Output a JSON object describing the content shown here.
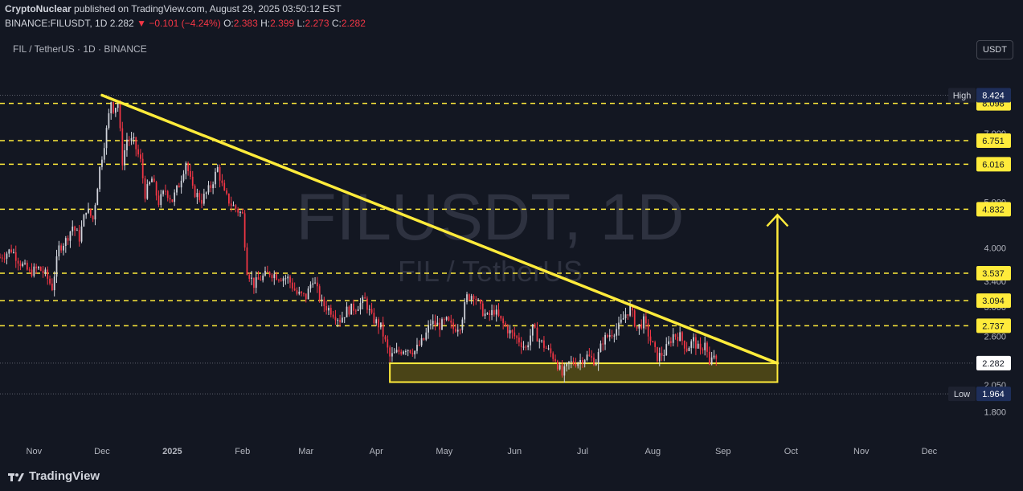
{
  "header": {
    "publisher": "CryptoNuclear",
    "published_text": "published on TradingView.com, August 29, 2025 03:50:12 EST",
    "ticker": "BINANCE:FILUSDT, 1D",
    "last": "2.282",
    "change": "−0.101 (−4.24%)",
    "o_label": "O:",
    "o": "2.383",
    "h_label": "H:",
    "h": "2.399",
    "l_label": "L:",
    "l": "2.273",
    "c_label": "C:",
    "c": "2.282"
  },
  "symbol_label": "FIL / TetherUS · 1D · BINANCE",
  "currency_button": "USDT",
  "watermark": {
    "line1": "FILUSDT, 1D",
    "line2": "FIL / TetherUS"
  },
  "footer": {
    "logo_text": "TradingView"
  },
  "colors": {
    "background": "#131722",
    "up": "#d1d4dc",
    "down": "#f23645",
    "accent": "#ffeb3b",
    "zone": "#4a4417"
  },
  "chart_data": {
    "type": "candlestick",
    "symbol": "FILUSDT",
    "interval": "1D",
    "scale": "log",
    "ylim": [
      1.72,
      9.2
    ],
    "x_range": [
      "2024-10-17",
      "2025-12-20"
    ],
    "x_tick_labels": [
      {
        "date": "2024-11-01",
        "label": "Nov"
      },
      {
        "date": "2024-12-01",
        "label": "Dec"
      },
      {
        "date": "2025-01-01",
        "label": "2025"
      },
      {
        "date": "2025-02-01",
        "label": "Feb"
      },
      {
        "date": "2025-03-01",
        "label": "Mar"
      },
      {
        "date": "2025-04-01",
        "label": "Apr"
      },
      {
        "date": "2025-05-01",
        "label": "May"
      },
      {
        "date": "2025-06-01",
        "label": "Jun"
      },
      {
        "date": "2025-07-01",
        "label": "Jul"
      },
      {
        "date": "2025-08-01",
        "label": "Aug"
      },
      {
        "date": "2025-09-01",
        "label": "Sep"
      },
      {
        "date": "2025-10-01",
        "label": "Oct"
      },
      {
        "date": "2025-11-01",
        "label": "Nov"
      },
      {
        "date": "2025-12-01",
        "label": "Dec"
      }
    ],
    "y_tick_labels": [
      "7.000",
      "5.000",
      "4.000",
      "3.400",
      "3.000",
      "2.600",
      "2.050",
      "1.800"
    ],
    "levels": [
      {
        "value": 8.098,
        "label": "8.098"
      },
      {
        "value": 6.751,
        "label": "6.751"
      },
      {
        "value": 6.016,
        "label": "6.016"
      },
      {
        "value": 4.832,
        "label": "4.832"
      },
      {
        "value": 3.537,
        "label": "3.537"
      },
      {
        "value": 3.094,
        "label": "3.094"
      },
      {
        "value": 2.737,
        "label": "2.737"
      }
    ],
    "high": {
      "label": "High",
      "value": "8.424"
    },
    "low": {
      "label": "Low",
      "value": "1.964"
    },
    "current_price": {
      "value": 2.282,
      "label": "2.282"
    },
    "trendline": {
      "from": {
        "date": "2024-12-01",
        "price": 8.424
      },
      "to": {
        "date": "2025-09-25",
        "price": 2.28
      }
    },
    "support_zone": {
      "from": "2025-04-07",
      "to": "2025-09-25",
      "top": 2.28,
      "bottom": 2.08
    },
    "target_arrow": {
      "date": "2025-09-25",
      "from": 2.28,
      "to": 4.7
    },
    "price_path": [
      [
        "2024-10-17",
        3.82
      ],
      [
        "2024-10-22",
        3.97
      ],
      [
        "2024-10-26",
        3.72
      ],
      [
        "2024-10-30",
        3.55
      ],
      [
        "2024-11-03",
        3.62
      ],
      [
        "2024-11-06",
        3.52
      ],
      [
        "2024-11-09",
        3.3
      ],
      [
        "2024-11-12",
        4.0
      ],
      [
        "2024-11-15",
        4.15
      ],
      [
        "2024-11-18",
        4.45
      ],
      [
        "2024-11-21",
        4.2
      ],
      [
        "2024-11-24",
        4.85
      ],
      [
        "2024-11-27",
        4.6
      ],
      [
        "2024-11-30",
        5.9
      ],
      [
        "2024-12-03",
        7.1
      ],
      [
        "2024-12-05",
        8.2
      ],
      [
        "2024-12-06",
        7.9
      ],
      [
        "2024-12-08",
        8.1
      ],
      [
        "2024-12-10",
        6.1
      ],
      [
        "2024-12-12",
        6.8
      ],
      [
        "2024-12-15",
        6.7
      ],
      [
        "2024-12-18",
        6.1
      ],
      [
        "2024-12-20",
        5.2
      ],
      [
        "2024-12-23",
        5.6
      ],
      [
        "2024-12-26",
        5.0
      ],
      [
        "2024-12-29",
        5.3
      ],
      [
        "2025-01-01",
        5.05
      ],
      [
        "2025-01-04",
        5.45
      ],
      [
        "2025-01-07",
        6.1
      ],
      [
        "2025-01-10",
        5.3
      ],
      [
        "2025-01-14",
        5.05
      ],
      [
        "2025-01-18",
        5.4
      ],
      [
        "2025-01-21",
        5.9
      ],
      [
        "2025-01-24",
        5.2
      ],
      [
        "2025-01-27",
        4.95
      ],
      [
        "2025-01-30",
        4.8
      ],
      [
        "2025-02-01",
        4.7
      ],
      [
        "2025-02-03",
        3.6
      ],
      [
        "2025-02-06",
        3.35
      ],
      [
        "2025-02-09",
        3.45
      ],
      [
        "2025-02-13",
        3.55
      ],
      [
        "2025-02-17",
        3.48
      ],
      [
        "2025-02-21",
        3.45
      ],
      [
        "2025-02-25",
        3.2
      ],
      [
        "2025-03-01",
        3.15
      ],
      [
        "2025-03-04",
        3.45
      ],
      [
        "2025-03-08",
        3.05
      ],
      [
        "2025-03-12",
        2.95
      ],
      [
        "2025-03-16",
        2.82
      ],
      [
        "2025-03-19",
        2.95
      ],
      [
        "2025-03-23",
        3.0
      ],
      [
        "2025-03-27",
        3.1
      ],
      [
        "2025-03-30",
        2.85
      ],
      [
        "2025-04-03",
        2.72
      ],
      [
        "2025-04-07",
        2.35
      ],
      [
        "2025-04-10",
        2.4
      ],
      [
        "2025-04-14",
        2.46
      ],
      [
        "2025-04-18",
        2.42
      ],
      [
        "2025-04-22",
        2.56
      ],
      [
        "2025-04-25",
        2.78
      ],
      [
        "2025-04-29",
        2.74
      ],
      [
        "2025-05-02",
        2.8
      ],
      [
        "2025-05-05",
        2.7
      ],
      [
        "2025-05-08",
        2.75
      ],
      [
        "2025-05-11",
        3.15
      ],
      [
        "2025-05-14",
        3.2
      ],
      [
        "2025-05-17",
        2.98
      ],
      [
        "2025-05-20",
        2.85
      ],
      [
        "2025-05-23",
        2.95
      ],
      [
        "2025-05-26",
        2.8
      ],
      [
        "2025-05-30",
        2.65
      ],
      [
        "2025-06-03",
        2.55
      ],
      [
        "2025-06-06",
        2.45
      ],
      [
        "2025-06-09",
        2.7
      ],
      [
        "2025-06-12",
        2.55
      ],
      [
        "2025-06-16",
        2.42
      ],
      [
        "2025-06-19",
        2.33
      ],
      [
        "2025-06-22",
        2.15
      ],
      [
        "2025-06-25",
        2.28
      ],
      [
        "2025-06-29",
        2.3
      ],
      [
        "2025-07-03",
        2.36
      ],
      [
        "2025-07-07",
        2.3
      ],
      [
        "2025-07-10",
        2.55
      ],
      [
        "2025-07-14",
        2.65
      ],
      [
        "2025-07-17",
        2.72
      ],
      [
        "2025-07-20",
        2.9
      ],
      [
        "2025-07-22",
        2.98
      ],
      [
        "2025-07-25",
        2.7
      ],
      [
        "2025-07-28",
        2.8
      ],
      [
        "2025-07-31",
        2.55
      ],
      [
        "2025-08-03",
        2.35
      ],
      [
        "2025-08-06",
        2.4
      ],
      [
        "2025-08-10",
        2.62
      ],
      [
        "2025-08-13",
        2.6
      ],
      [
        "2025-08-16",
        2.45
      ],
      [
        "2025-08-19",
        2.55
      ],
      [
        "2025-08-22",
        2.4
      ],
      [
        "2025-08-24",
        2.55
      ],
      [
        "2025-08-26",
        2.25
      ],
      [
        "2025-08-28",
        2.38
      ],
      [
        "2025-08-29",
        2.282
      ]
    ]
  }
}
